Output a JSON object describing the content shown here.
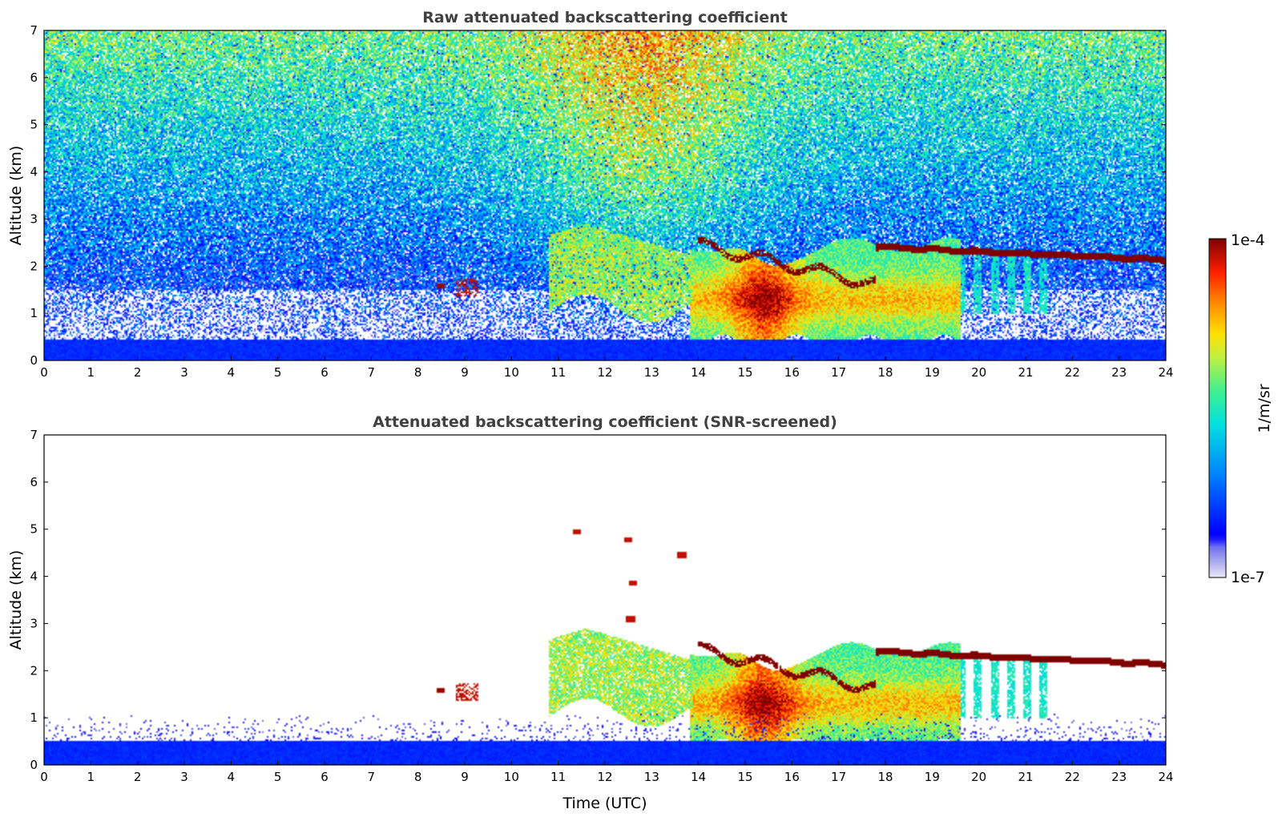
{
  "chart_data": [
    {
      "type": "heatmap",
      "title": "Raw attenuated backscattering coefficient",
      "xlabel": "",
      "ylabel": "Altitude (km)",
      "xlim": [
        0,
        24
      ],
      "ylim": [
        0,
        7
      ],
      "xticks": [
        "0",
        "1",
        "2",
        "3",
        "4",
        "5",
        "6",
        "7",
        "8",
        "9",
        "10",
        "11",
        "12",
        "13",
        "14",
        "15",
        "16",
        "17",
        "18",
        "19",
        "20",
        "21",
        "22",
        "23",
        "24"
      ],
      "yticks": [
        "0",
        "1",
        "2",
        "3",
        "4",
        "5",
        "6",
        "7"
      ],
      "features": [
        {
          "feature": "near-surface layer",
          "x": [
            0,
            24
          ],
          "y": [
            0,
            0.4
          ],
          "level": 0.2
        },
        {
          "feature": "noisy background",
          "x": [
            0,
            24
          ],
          "y": [
            0.5,
            7
          ],
          "level_low": 0.25,
          "level_high": 0.6
        },
        {
          "feature": "mid-morning noise column",
          "x": [
            8.5,
            15
          ],
          "y": [
            3,
            7
          ],
          "level": 0.85
        },
        {
          "feature": "aerosol layer",
          "x": [
            10.8,
            13.9
          ],
          "y": [
            1.1,
            2.9
          ],
          "level": 0.6
        },
        {
          "feature": "cloud patches",
          "x": [
            8.4,
            9.5
          ],
          "y": [
            1.4,
            1.7
          ],
          "level": 1.0
        },
        {
          "feature": "convective boundary layer",
          "x": [
            13.8,
            19.5
          ],
          "y": [
            0.3,
            2.5
          ],
          "level": 0.75
        },
        {
          "feature": "cloud top layer",
          "x": [
            17.8,
            24
          ],
          "y": [
            2.1,
            2.5
          ],
          "level": 1.0
        },
        {
          "feature": "fall streaks",
          "x": [
            18.5,
            21.5
          ],
          "y": [
            1.0,
            2.2
          ],
          "level": 0.45
        }
      ]
    },
    {
      "type": "heatmap",
      "title": "Attenuated backscattering coefficient (SNR-screened)",
      "xlabel": "Time (UTC)",
      "ylabel": "Altitude (km)",
      "xlim": [
        0,
        24
      ],
      "ylim": [
        0,
        7
      ],
      "xticks": [
        "0",
        "1",
        "2",
        "3",
        "4",
        "5",
        "6",
        "7",
        "8",
        "9",
        "10",
        "11",
        "12",
        "13",
        "14",
        "15",
        "16",
        "17",
        "18",
        "19",
        "20",
        "21",
        "22",
        "23",
        "24"
      ],
      "yticks": [
        "0",
        "1",
        "2",
        "3",
        "4",
        "5",
        "6",
        "7"
      ],
      "features": [
        {
          "feature": "near-surface layer",
          "x": [
            0,
            24
          ],
          "y": [
            0,
            0.7
          ],
          "level": 0.2
        },
        {
          "feature": "aerosol layer",
          "x": [
            10.7,
            13.9
          ],
          "y": [
            1.2,
            2.9
          ],
          "level": 0.55
        },
        {
          "feature": "cloud patches",
          "x": [
            8.4,
            9.5
          ],
          "y": [
            1.4,
            1.7
          ],
          "level": 1.0
        },
        {
          "feature": "elevated cloud spots",
          "x": [
            12.4,
            13.7
          ],
          "y": [
            3.0,
            4.8
          ],
          "level": 0.95
        },
        {
          "feature": "convective boundary layer",
          "x": [
            13.8,
            19.5
          ],
          "y": [
            0.3,
            2.5
          ],
          "level": 0.75
        },
        {
          "feature": "cloud top layer",
          "x": [
            17.8,
            24
          ],
          "y": [
            2.1,
            2.5
          ],
          "level": 1.0
        },
        {
          "feature": "fall streaks",
          "x": [
            18.5,
            21.5
          ],
          "y": [
            1.0,
            2.2
          ],
          "level": 0.45
        }
      ]
    }
  ],
  "colorbar": {
    "label": "1/m/sr",
    "max_label": "1e-4",
    "min_label": "1e-7",
    "colormap": "jet",
    "low_colors": [
      "#e8e8f8",
      "#c0c0f0",
      "#9a9aec",
      "#7070f0",
      "#4848f4"
    ],
    "high_colors": [
      "#0000ff",
      "#0080ff",
      "#00e0e0",
      "#40f090",
      "#c0f040",
      "#ffe000",
      "#ff8000",
      "#ff2000",
      "#800000"
    ]
  }
}
